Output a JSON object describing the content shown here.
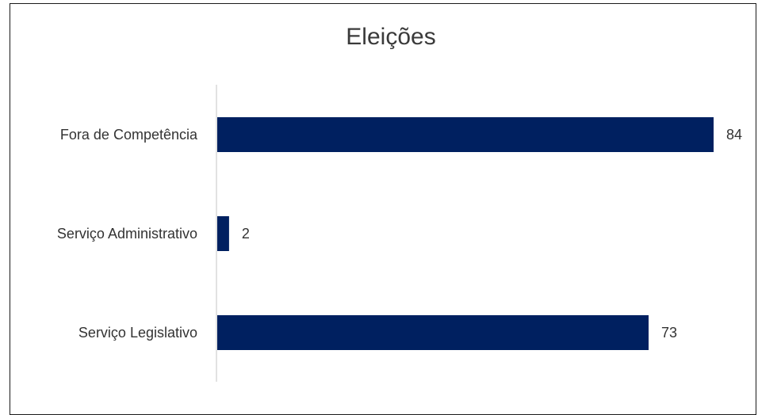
{
  "chart_data": {
    "type": "bar",
    "orientation": "horizontal",
    "title": "Eleições",
    "categories": [
      "Fora de Competência",
      "Serviço Administrativo",
      "Serviço Legislativo"
    ],
    "values": [
      84,
      2,
      73
    ],
    "xlim": [
      0,
      84
    ],
    "grid": false,
    "legend": "none",
    "data_labels": true,
    "colors": {
      "bar": "#002060",
      "axis": "#d9d9d9"
    }
  }
}
